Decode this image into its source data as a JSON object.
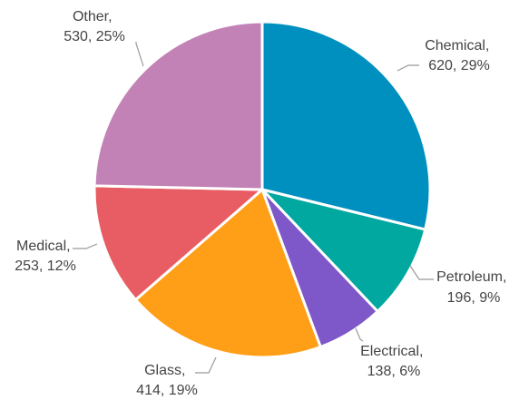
{
  "chart_data": {
    "type": "pie",
    "title": "",
    "slices": [
      {
        "label": "Chemical",
        "value": 620,
        "percent": "29%",
        "color": "#0090c0"
      },
      {
        "label": "Petroleum",
        "value": 196,
        "percent": "9%",
        "color": "#00a8a0"
      },
      {
        "label": "Electrical",
        "value": 138,
        "percent": "6%",
        "color": "#7e57c8"
      },
      {
        "label": "Glass",
        "value": 414,
        "percent": "19%",
        "color": "#ff9f18"
      },
      {
        "label": "Medical",
        "value": 253,
        "percent": "12%",
        "color": "#e85c63"
      },
      {
        "label": "Other",
        "value": 530,
        "percent": "25%",
        "color": "#c282b6"
      }
    ]
  }
}
